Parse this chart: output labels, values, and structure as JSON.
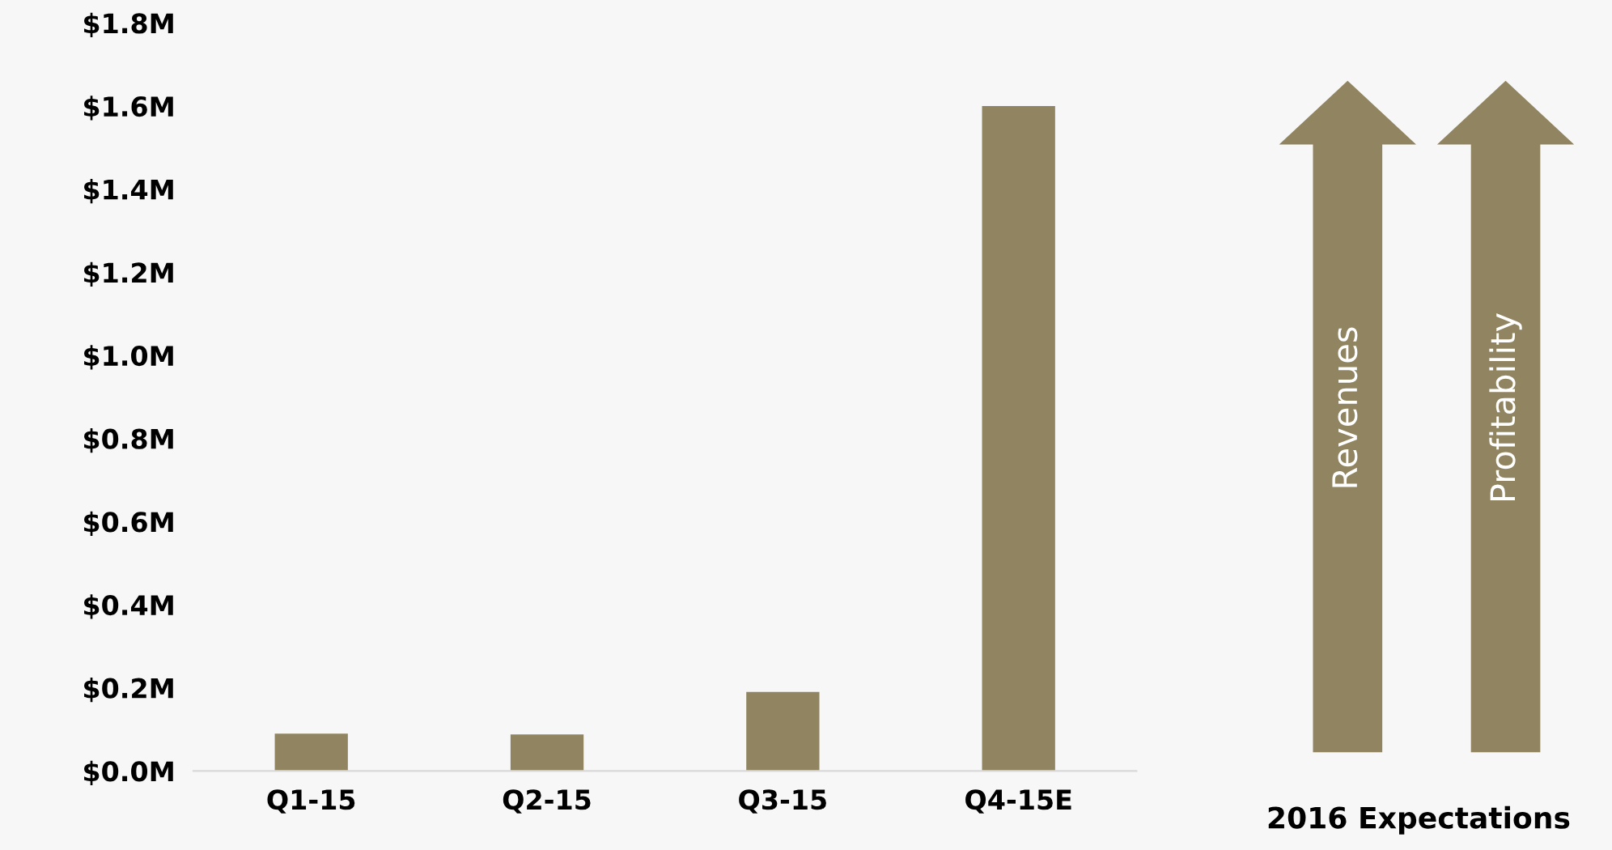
{
  "chart_data": {
    "type": "bar",
    "categories": [
      "Q1-15",
      "Q2-15",
      "Q3-15",
      "Q4-15E"
    ],
    "values": [
      0.09,
      0.088,
      0.19,
      1.6
    ],
    "color": "#918460",
    "ylim": [
      0,
      1.8
    ],
    "yticks": [
      {
        "value": 0,
        "label": "$0.0M"
      },
      {
        "value": 0.2,
        "label": "$0.2M"
      },
      {
        "value": 0.4,
        "label": "$0.4M"
      },
      {
        "value": 0.6,
        "label": "$0.6M"
      },
      {
        "value": 0.8,
        "label": "$0.8M"
      },
      {
        "value": 1.0,
        "label": "$1.0M"
      },
      {
        "value": 1.2,
        "label": "$1.2M"
      },
      {
        "value": 1.4,
        "label": "$1.4M"
      },
      {
        "value": 1.6,
        "label": "$1.6M"
      },
      {
        "value": 1.8,
        "label": "$1.8M"
      }
    ],
    "grid": false,
    "legend": false,
    "annotations": [
      "Revenues",
      "Profitability",
      "2016 Expectations"
    ]
  }
}
